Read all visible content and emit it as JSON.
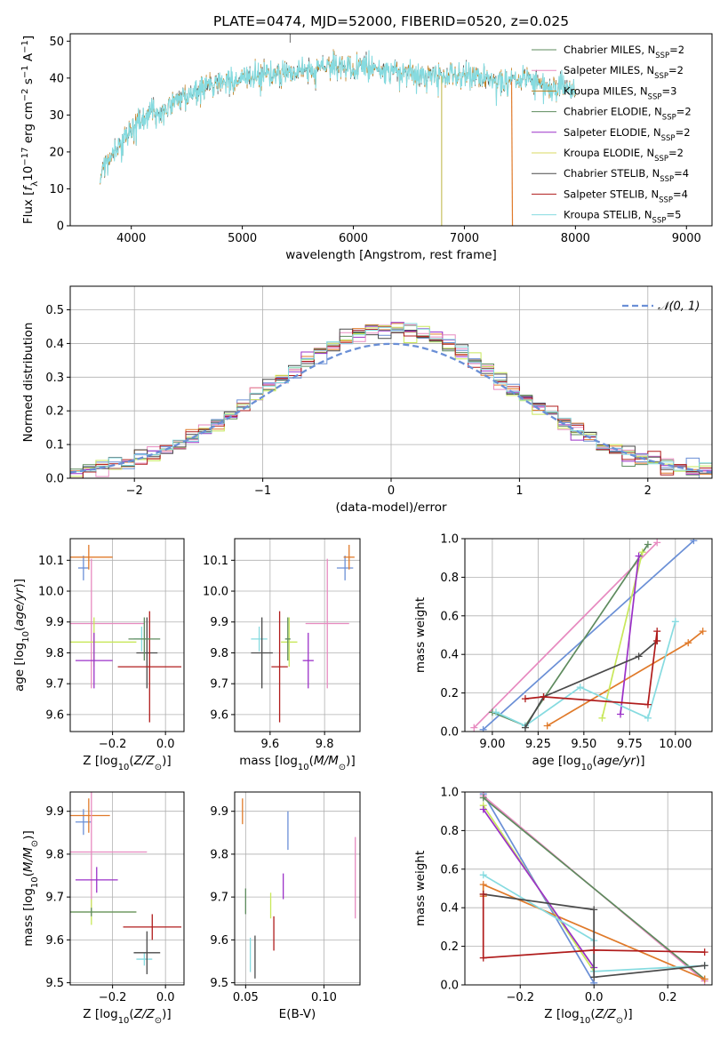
{
  "title": "PLATE=0474, MJD=52000, FIBERID=0520, z=0.025",
  "colors": [
    "#6a8fd6",
    "#e07a2a",
    "#5e8b5e",
    "#9b30c8",
    "#e78ac0",
    "#c8e85a",
    "#4a4a4a",
    "#b01c1c",
    "#86dbe0"
  ],
  "legend_models": [
    {
      "name": "Chabrier MILES",
      "n": "2",
      "color": "#5e8b5e"
    },
    {
      "name": "Salpeter MILES",
      "n": "2",
      "color": "#e78ac0"
    },
    {
      "name": "Kroupa MILES",
      "n": "3",
      "color": "#c08020"
    },
    {
      "name": "Chabrier ELODIE",
      "n": "2",
      "color": "#5e8b5e"
    },
    {
      "name": "Salpeter ELODIE",
      "n": "2",
      "color": "#9b30c8"
    },
    {
      "name": "Kroupa ELODIE",
      "n": "2",
      "color": "#d8d860"
    },
    {
      "name": "Chabrier STELIB",
      "n": "4",
      "color": "#4a4a4a"
    },
    {
      "name": "Salpeter STELIB",
      "n": "4",
      "color": "#b01c1c"
    },
    {
      "name": "Kroupa STELIB",
      "n": "5",
      "color": "#86dbe0"
    }
  ],
  "legend_nssp_prefix": "N",
  "legend_nssp_sub": "SSP",
  "chart_data": [
    {
      "id": "spectrum",
      "type": "line",
      "xlabel": "wavelength [Angstrom, rest frame]",
      "ylabel": "Flux [f_λ10^-17 erg cm^-2 s^-1 A^-1]",
      "ylabel_parts": {
        "a": "Flux [",
        "f": "f",
        "sub": "λ",
        "b": "10",
        "sup1": "−17",
        "c": " erg cm",
        "sup2": "−2",
        "d": " s",
        "sup3": "−1",
        "e": " A",
        "sup4": "−1",
        "g": "]"
      },
      "xlim": [
        3450,
        9230
      ],
      "ylim": [
        0,
        52
      ],
      "xticks": [
        4000,
        5000,
        6000,
        7000,
        8000,
        9000
      ],
      "yticks": [
        0,
        10,
        20,
        30,
        40,
        50
      ],
      "continuum": [
        [
          3720,
          14
        ],
        [
          3800,
          18
        ],
        [
          3900,
          22
        ],
        [
          4000,
          26
        ],
        [
          4100,
          29
        ],
        [
          4200,
          31
        ],
        [
          4300,
          32
        ],
        [
          4400,
          34
        ],
        [
          4600,
          37
        ],
        [
          4800,
          39
        ],
        [
          5000,
          40
        ],
        [
          5200,
          41
        ],
        [
          5400,
          41.5
        ],
        [
          5600,
          42.5
        ],
        [
          5800,
          43
        ],
        [
          6000,
          43
        ],
        [
          6200,
          42.5
        ],
        [
          6400,
          42
        ],
        [
          6600,
          41
        ],
        [
          6800,
          40.5
        ],
        [
          7000,
          40.5
        ],
        [
          7200,
          40
        ],
        [
          7400,
          39
        ],
        [
          7600,
          39.5
        ],
        [
          7800,
          38
        ],
        [
          8000,
          37
        ]
      ],
      "spikes": [
        [
          6795,
          0
        ],
        [
          7425,
          0
        ]
      ]
    },
    {
      "id": "residuals",
      "type": "histogram",
      "xlabel": "(data-model)/error",
      "ylabel": "Normed distribution",
      "xlim": [
        -2.5,
        2.5
      ],
      "ylim": [
        0,
        0.57
      ],
      "xticks": [
        -2,
        -1,
        0,
        1,
        2
      ],
      "yticks": [
        0.0,
        0.1,
        0.2,
        0.3,
        0.4,
        0.5
      ],
      "reference_curve": "N(0,1)",
      "reference_label": "𝒩(0, 1)",
      "bin_width": 0.1
    },
    {
      "id": "age-vs-Z",
      "type": "errorbar",
      "xlabel": "Z [log10(Z/Z⊙)]",
      "ylabel": "age [log10(age/yr)]",
      "xlim": [
        -0.36,
        0.07
      ],
      "ylim": [
        9.545,
        10.17
      ],
      "xticks": [
        -0.2,
        0.0
      ],
      "yticks": [
        9.6,
        9.7,
        9.8,
        9.9,
        10.0,
        10.1
      ],
      "points": [
        {
          "x": -0.31,
          "y": 10.075,
          "ex": 0.02,
          "ey": 0.04,
          "c": 0
        },
        {
          "x": -0.29,
          "y": 10.11,
          "ex": 0.09,
          "ey": 0.04,
          "c": 1
        },
        {
          "x": -0.09,
          "y": 9.845,
          "ex": 0.03,
          "ey": 0.04,
          "c": 8
        },
        {
          "x": -0.28,
          "y": 9.895,
          "ex": 0.2,
          "ey": 0.21,
          "c": 4
        },
        {
          "x": -0.27,
          "y": 9.835,
          "ex": 0.16,
          "ey": 0.08,
          "c": 5
        },
        {
          "x": -0.27,
          "y": 9.775,
          "ex": 0.07,
          "ey": 0.09,
          "c": 3
        },
        {
          "x": -0.07,
          "y": 9.8,
          "ex": 0.04,
          "ey": 0.115,
          "c": 6
        },
        {
          "x": -0.06,
          "y": 9.755,
          "ex": 0.12,
          "ey": 0.18,
          "c": 7
        },
        {
          "x": -0.08,
          "y": 9.845,
          "ex": 0.06,
          "ey": 0.07,
          "c": 2
        }
      ]
    },
    {
      "id": "age-vs-mass",
      "type": "errorbar",
      "xlabel": "mass [log10(M/M⊙)]",
      "ylabel": "",
      "xlim": [
        9.47,
        9.93
      ],
      "ylim": [
        9.545,
        10.17
      ],
      "xticks": [
        9.6,
        9.8
      ],
      "yticks": [
        9.6,
        9.7,
        9.8,
        9.9,
        10.0,
        10.1
      ],
      "points": [
        {
          "x": 9.875,
          "y": 10.075,
          "ex": 0.03,
          "ey": 0.04,
          "c": 0
        },
        {
          "x": 9.89,
          "y": 10.11,
          "ex": 0.02,
          "ey": 0.04,
          "c": 1
        },
        {
          "x": 9.56,
          "y": 9.845,
          "ex": 0.03,
          "ey": 0.04,
          "c": 8
        },
        {
          "x": 9.81,
          "y": 9.895,
          "ex": 0.08,
          "ey": 0.21,
          "c": 4
        },
        {
          "x": 9.67,
          "y": 9.835,
          "ex": 0.03,
          "ey": 0.08,
          "c": 5
        },
        {
          "x": 9.74,
          "y": 9.775,
          "ex": 0.02,
          "ey": 0.09,
          "c": 3
        },
        {
          "x": 9.57,
          "y": 9.8,
          "ex": 0.04,
          "ey": 0.115,
          "c": 6
        },
        {
          "x": 9.635,
          "y": 9.755,
          "ex": 0.03,
          "ey": 0.18,
          "c": 7
        },
        {
          "x": 9.665,
          "y": 9.845,
          "ex": 0.01,
          "ey": 0.07,
          "c": 2
        }
      ]
    },
    {
      "id": "weight-vs-age",
      "type": "line",
      "xlabel": "age [log10(age/yr)]",
      "ylabel": "mass weight",
      "xlim": [
        8.85,
        10.2
      ],
      "ylim": [
        0,
        1.0
      ],
      "xticks": [
        9.0,
        9.25,
        9.5,
        9.75,
        10.0
      ],
      "xticklabels": [
        "9.00",
        "9.25",
        "9.50",
        "9.75",
        "10.00"
      ],
      "yticks": [
        0.0,
        0.2,
        0.4,
        0.6,
        0.8,
        1.0
      ],
      "series": [
        {
          "c": 0,
          "points": [
            [
              8.95,
              0.01
            ],
            [
              10.1,
              0.99
            ]
          ]
        },
        {
          "c": 4,
          "points": [
            [
              8.9,
              0.02
            ],
            [
              9.9,
              0.98
            ]
          ]
        },
        {
          "c": 2,
          "points": [
            [
              9.0,
              0.1
            ],
            [
              9.18,
              0.03
            ],
            [
              9.85,
              0.97
            ]
          ]
        },
        {
          "c": 1,
          "points": [
            [
              9.3,
              0.03
            ],
            [
              10.07,
              0.46
            ],
            [
              10.15,
              0.52
            ]
          ]
        },
        {
          "c": 5,
          "points": [
            [
              9.6,
              0.07
            ],
            [
              9.82,
              0.93
            ]
          ]
        },
        {
          "c": 3,
          "points": [
            [
              9.7,
              0.09
            ],
            [
              9.8,
              0.91
            ]
          ]
        },
        {
          "c": 8,
          "points": [
            [
              9.02,
              0.1
            ],
            [
              9.18,
              0.03
            ],
            [
              9.48,
              0.23
            ],
            [
              9.85,
              0.07
            ],
            [
              10.0,
              0.57
            ]
          ]
        },
        {
          "c": 6,
          "points": [
            [
              9.18,
              0.02
            ],
            [
              9.28,
              0.18
            ],
            [
              9.8,
              0.39
            ],
            [
              9.9,
              0.47
            ]
          ]
        },
        {
          "c": 7,
          "points": [
            [
              9.18,
              0.17
            ],
            [
              9.28,
              0.18
            ],
            [
              9.85,
              0.14
            ],
            [
              9.9,
              0.52
            ],
            [
              9.9,
              0.47
            ]
          ]
        }
      ]
    },
    {
      "id": "mass-vs-Z",
      "type": "errorbar",
      "xlabel": "Z [log10(Z/Z⊙)]",
      "ylabel": "mass [log10(M/M⊙)]",
      "xlim": [
        -0.36,
        0.07
      ],
      "ylim": [
        9.495,
        9.945
      ],
      "xticks": [
        -0.2,
        0.0
      ],
      "yticks": [
        9.5,
        9.6,
        9.7,
        9.8,
        9.9
      ],
      "points": [
        {
          "x": -0.31,
          "y": 9.875,
          "ex": 0.03,
          "ey": 0.03,
          "c": 0
        },
        {
          "x": -0.29,
          "y": 9.89,
          "ex": 0.08,
          "ey": 0.04,
          "c": 1
        },
        {
          "x": -0.08,
          "y": 9.555,
          "ex": 0.03,
          "ey": 0.015,
          "c": 8
        },
        {
          "x": -0.28,
          "y": 9.805,
          "ex": 0.21,
          "ey": 0.15,
          "c": 4
        },
        {
          "x": -0.28,
          "y": 9.665,
          "ex": 0.17,
          "ey": 0.03,
          "c": 5
        },
        {
          "x": -0.26,
          "y": 9.74,
          "ex": 0.08,
          "ey": 0.03,
          "c": 3
        },
        {
          "x": -0.07,
          "y": 9.57,
          "ex": 0.05,
          "ey": 0.05,
          "c": 6
        },
        {
          "x": -0.05,
          "y": 9.63,
          "ex": 0.11,
          "ey": 0.03,
          "c": 7
        },
        {
          "x": -0.28,
          "y": 9.665,
          "ex": 0.17,
          "ey": 0.01,
          "c": 2
        }
      ]
    },
    {
      "id": "mass-vs-ebv",
      "type": "errorbar",
      "xlabel": "E(B-V)",
      "ylabel": "",
      "xlim": [
        0.043,
        0.123
      ],
      "ylim": [
        9.495,
        9.945
      ],
      "xticks": [
        0.05,
        0.1
      ],
      "xticklabels": [
        "0.05",
        "0.10"
      ],
      "yticks": [
        9.5,
        9.6,
        9.7,
        9.8,
        9.9
      ],
      "points": [
        {
          "x": 0.077,
          "y": 9.855,
          "ex": 0,
          "ey": 0.045,
          "c": 0
        },
        {
          "x": 0.048,
          "y": 9.9,
          "ex": 0,
          "ey": 0.03,
          "c": 1
        },
        {
          "x": 0.053,
          "y": 9.565,
          "ex": 0,
          "ey": 0.04,
          "c": 8
        },
        {
          "x": 0.12,
          "y": 9.745,
          "ex": 0,
          "ey": 0.095,
          "c": 4
        },
        {
          "x": 0.066,
          "y": 9.68,
          "ex": 0,
          "ey": 0.03,
          "c": 5
        },
        {
          "x": 0.074,
          "y": 9.725,
          "ex": 0,
          "ey": 0.03,
          "c": 3
        },
        {
          "x": 0.056,
          "y": 9.56,
          "ex": 0,
          "ey": 0.05,
          "c": 6
        },
        {
          "x": 0.068,
          "y": 9.615,
          "ex": 0,
          "ey": 0.04,
          "c": 7
        },
        {
          "x": 0.05,
          "y": 9.69,
          "ex": 0,
          "ey": 0.03,
          "c": 2
        }
      ]
    },
    {
      "id": "weight-vs-Z",
      "type": "line",
      "xlabel": "Z [log10(Z/Z⊙)]",
      "ylabel": "mass weight",
      "xlim": [
        -0.35,
        0.32
      ],
      "ylim": [
        0,
        1.0
      ],
      "xticks": [
        -0.2,
        0.0,
        0.2
      ],
      "yticks": [
        0.0,
        0.2,
        0.4,
        0.6,
        0.8,
        1.0
      ],
      "series": [
        {
          "c": 0,
          "points": [
            [
              -0.3,
              0.99
            ],
            [
              0.0,
              0.01
            ]
          ]
        },
        {
          "c": 4,
          "points": [
            [
              -0.3,
              0.98
            ],
            [
              0.3,
              0.02
            ]
          ]
        },
        {
          "c": 2,
          "points": [
            [
              -0.3,
              0.97
            ],
            [
              0.3,
              0.03
            ]
          ]
        },
        {
          "c": 1,
          "points": [
            [
              -0.3,
              0.46
            ],
            [
              -0.3,
              0.52
            ],
            [
              0.3,
              0.03
            ]
          ]
        },
        {
          "c": 5,
          "points": [
            [
              -0.3,
              0.93
            ],
            [
              0.0,
              0.07
            ]
          ]
        },
        {
          "c": 3,
          "points": [
            [
              -0.3,
              0.91
            ],
            [
              0.0,
              0.09
            ]
          ]
        },
        {
          "c": 8,
          "points": [
            [
              -0.3,
              0.57
            ],
            [
              0.0,
              0.23
            ],
            [
              0.0,
              0.07
            ],
            [
              0.3,
              0.1
            ]
          ]
        },
        {
          "c": 6,
          "points": [
            [
              -0.3,
              0.47
            ],
            [
              0.0,
              0.39
            ],
            [
              0.0,
              0.04
            ],
            [
              0.3,
              0.1
            ]
          ]
        },
        {
          "c": 7,
          "points": [
            [
              -0.3,
              0.47
            ],
            [
              -0.3,
              0.14
            ],
            [
              0.0,
              0.18
            ],
            [
              0.3,
              0.17
            ]
          ]
        }
      ]
    }
  ]
}
